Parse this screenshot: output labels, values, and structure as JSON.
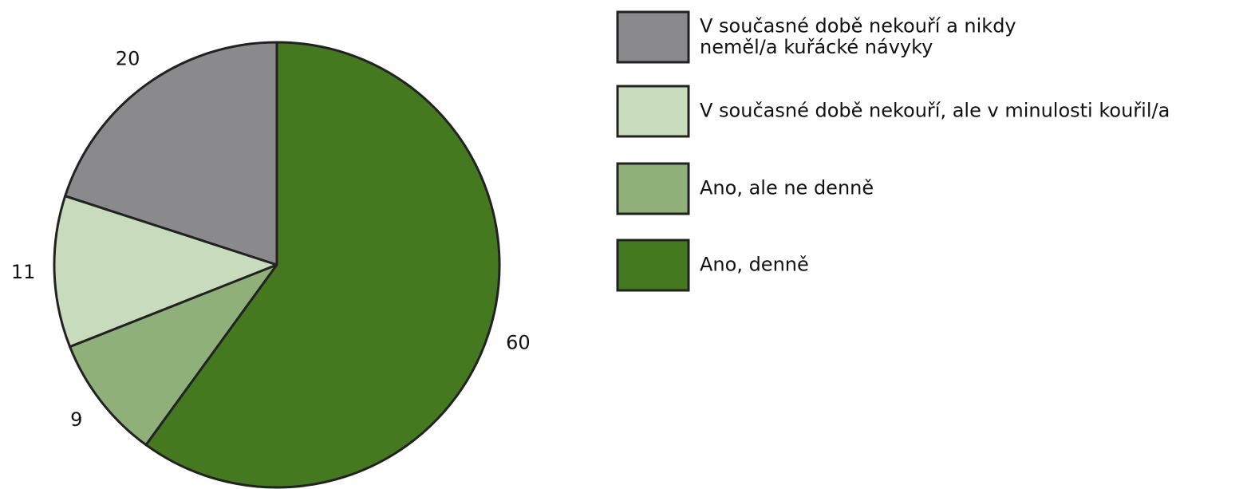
{
  "chart_data": {
    "type": "pie",
    "categories": [
      "V současné době nekouří a nikdy\nneměl/a kuřácké návyky",
      "V současné době nekouří, ale v minulosti kouřil/a",
      "Ano, ale ne denně",
      "Ano, denně"
    ],
    "values": [
      20,
      11,
      9,
      60
    ],
    "colors": [
      "#8a8a8c",
      "#c9dbbd",
      "#90b07a",
      "#44791f"
    ],
    "legend": "right"
  }
}
